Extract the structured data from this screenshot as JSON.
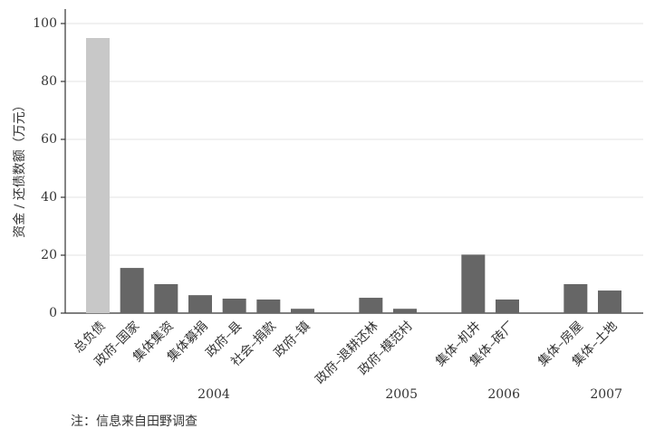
{
  "chart_data": {
    "type": "bar",
    "y_label": "资金 / 还债数额（万元）",
    "note": "注：信息来自田野调查",
    "categories": [
      "总负债",
      "政府–国家",
      "集体集资",
      "集体募捐",
      "政府–县",
      "社会–捐款",
      "政府–镇",
      null,
      "政府–退耕还林",
      "政府–模范村",
      null,
      "集体–机井",
      "集体–砖厂",
      null,
      "集体–房屋",
      "集体–土地"
    ],
    "values": [
      95,
      15.6,
      10,
      6.2,
      5,
      4.7,
      1.5,
      null,
      5.3,
      1.5,
      null,
      20.2,
      4.7,
      null,
      10,
      7.8
    ],
    "colors": [
      "#c8c8c8",
      "#666666",
      "#666666",
      "#666666",
      "#666666",
      "#666666",
      "#666666",
      null,
      "#666666",
      "#666666",
      null,
      "#666666",
      "#666666",
      null,
      "#666666",
      "#666666"
    ],
    "groups": [
      "2004",
      "2005",
      "2006",
      "2007"
    ],
    "ylim": [
      0,
      105
    ],
    "yticks": [
      0,
      20,
      40,
      60,
      80,
      100
    ],
    "grid": true
  }
}
